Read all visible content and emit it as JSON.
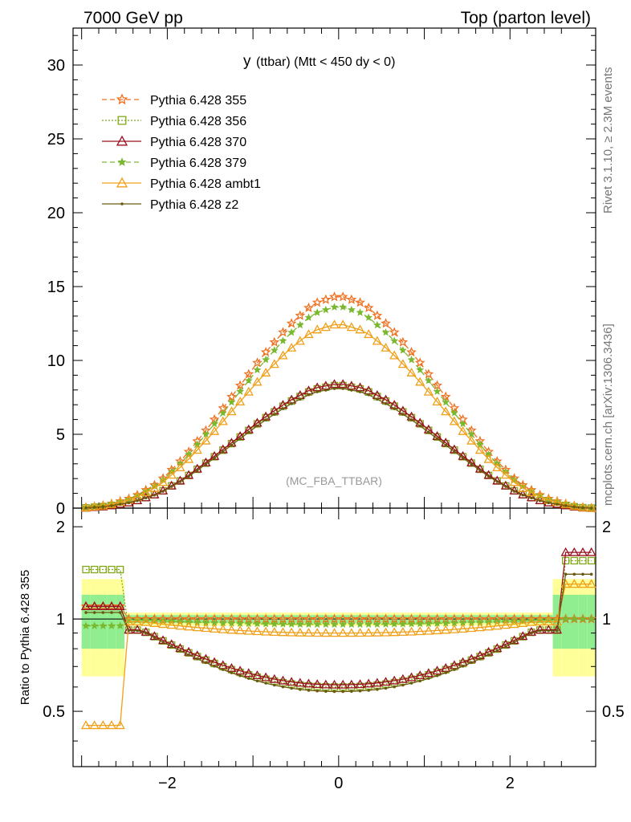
{
  "header": {
    "left": "7000 GeV pp",
    "right": "Top (parton level)"
  },
  "side_labels": {
    "rivet": "Rivet 3.1.10, ≥ 2.3M events",
    "mcplots": "mcplots.cern.ch [arXiv:1306.3436]"
  },
  "chart_data": {
    "type": "line",
    "title_main": "y",
    "title_rest": "(ttbar) (Mtt < 450 dy < 0)",
    "watermark": "(MC_FBA_TTBAR)",
    "xlim": [
      -3.1,
      3.0
    ],
    "ylim": [
      0,
      32.5
    ],
    "x_ticks": [
      -2,
      0,
      2
    ],
    "y_ticks": [
      0,
      5,
      10,
      15,
      20,
      25,
      30
    ],
    "ratio_ylabel": "Ratio to Pythia 6.428 355",
    "ratio_ylim": [
      0.33,
      2.3
    ],
    "ratio_ticks": [
      0.5,
      1,
      2
    ],
    "series": [
      {
        "name": "Pythia 6.428 355",
        "color": "#f07020",
        "dash": "6,4",
        "marker": "star",
        "peak": 14.4,
        "ratio_mid": 1.0,
        "edge_ratio_left": 1.1,
        "edge_ratio_right": 1.0
      },
      {
        "name": "Pythia 6.428 356",
        "color": "#80a818",
        "dash": "2,2",
        "marker": "square",
        "peak": 8.35,
        "ratio_mid": 0.6,
        "edge_ratio_left": 1.45,
        "edge_ratio_right": 1.55
      },
      {
        "name": "Pythia 6.428 370",
        "color": "#9a1020",
        "dash": "",
        "marker": "triangle",
        "peak": 8.45,
        "ratio_mid": 0.61,
        "edge_ratio_left": 1.1,
        "edge_ratio_right": 1.65
      },
      {
        "name": "Pythia 6.428 379",
        "color": "#7ab830",
        "dash": "6,4",
        "marker": "star-small",
        "peak": 13.7,
        "ratio_mid": 0.96,
        "edge_ratio_left": 0.95,
        "edge_ratio_right": 1.0
      },
      {
        "name": "Pythia 6.428 ambt1",
        "color": "#f0a018",
        "dash": "",
        "marker": "triangle",
        "peak": 12.5,
        "ratio_mid": 0.9,
        "edge_ratio_left": 0.45,
        "edge_ratio_right": 1.3
      },
      {
        "name": "Pythia 6.428 z2",
        "color": "#6a5a10",
        "dash": "",
        "marker": "dot",
        "peak": 8.15,
        "ratio_mid": 0.58,
        "edge_ratio_left": 1.05,
        "edge_ratio_right": 1.4
      }
    ],
    "curve_shape": {
      "x": [
        -3.0,
        -2.7,
        -2.4,
        -2.1,
        -1.8,
        -1.5,
        -1.2,
        -0.9,
        -0.6,
        -0.3,
        0.0,
        0.3,
        0.6,
        0.9,
        1.2,
        1.5,
        1.8,
        2.1,
        2.4,
        2.7,
        2.9
      ],
      "frac": [
        0.0,
        0.015,
        0.05,
        0.12,
        0.24,
        0.39,
        0.55,
        0.71,
        0.85,
        0.96,
        1.0,
        0.96,
        0.85,
        0.71,
        0.55,
        0.39,
        0.24,
        0.12,
        0.05,
        0.015,
        0.0
      ]
    },
    "band": {
      "inner_color": "#90ee90",
      "outer_color": "#ffff99"
    }
  }
}
